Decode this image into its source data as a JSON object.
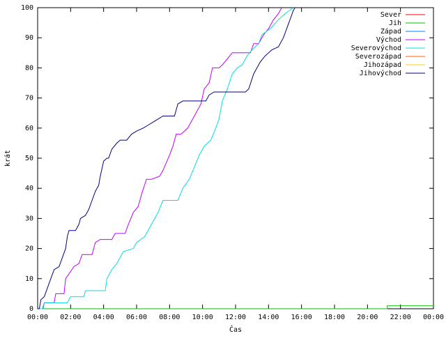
{
  "chart_data": {
    "type": "line",
    "title": "",
    "xlabel": "Čas",
    "ylabel": "krát",
    "xlim": [
      0,
      24
    ],
    "ylim": [
      0,
      100
    ],
    "x_ticks": [
      "00:00",
      "02:00",
      "04:00",
      "06:00",
      "08:00",
      "10:00",
      "12:00",
      "14:00",
      "16:00",
      "18:00",
      "20:00",
      "22:00",
      "00:00"
    ],
    "y_ticks": [
      "0",
      "10",
      "20",
      "30",
      "40",
      "50",
      "60",
      "70",
      "80",
      "90",
      "100"
    ],
    "legend_position": "top-right",
    "series": [
      {
        "name": "Sever",
        "color": "#ff0000",
        "points": []
      },
      {
        "name": "Jih",
        "color": "#00c000",
        "points": [
          [
            0,
            0
          ],
          [
            21.2,
            0
          ],
          [
            21.2,
            1
          ],
          [
            24,
            1
          ]
        ]
      },
      {
        "name": "Západ",
        "color": "#0080ff",
        "points": []
      },
      {
        "name": "Východ",
        "color": "#c000ff",
        "points": [
          [
            0,
            0
          ],
          [
            0.3,
            0
          ],
          [
            0.4,
            2
          ],
          [
            1.0,
            2
          ],
          [
            1.1,
            5
          ],
          [
            1.6,
            5
          ],
          [
            1.7,
            10
          ],
          [
            2.2,
            14
          ],
          [
            2.5,
            15
          ],
          [
            2.7,
            18
          ],
          [
            3.3,
            18
          ],
          [
            3.5,
            22
          ],
          [
            3.8,
            23
          ],
          [
            4.5,
            23
          ],
          [
            4.7,
            25
          ],
          [
            5.3,
            25
          ],
          [
            5.5,
            28
          ],
          [
            5.8,
            32
          ],
          [
            6.1,
            34
          ],
          [
            6.3,
            38
          ],
          [
            6.6,
            43
          ],
          [
            6.9,
            43
          ],
          [
            7.4,
            44
          ],
          [
            7.6,
            46
          ],
          [
            8.0,
            51
          ],
          [
            8.2,
            54
          ],
          [
            8.4,
            58
          ],
          [
            8.7,
            58
          ],
          [
            9.1,
            60
          ],
          [
            9.4,
            63
          ],
          [
            9.6,
            65
          ],
          [
            9.9,
            68
          ],
          [
            10.1,
            73
          ],
          [
            10.4,
            75
          ],
          [
            10.6,
            80
          ],
          [
            11.0,
            80
          ],
          [
            11.2,
            81
          ],
          [
            11.5,
            83
          ],
          [
            11.8,
            85
          ],
          [
            12.9,
            85
          ],
          [
            13.1,
            88
          ],
          [
            13.4,
            88
          ],
          [
            13.7,
            91
          ],
          [
            14.0,
            93
          ],
          [
            14.3,
            96
          ],
          [
            14.6,
            98
          ],
          [
            14.8,
            100
          ]
        ]
      },
      {
        "name": "Severovýchod",
        "color": "#00e0e0",
        "points": [
          [
            0,
            0
          ],
          [
            0.35,
            0
          ],
          [
            0.4,
            2
          ],
          [
            1.8,
            2
          ],
          [
            2.0,
            4
          ],
          [
            2.8,
            4
          ],
          [
            2.9,
            6
          ],
          [
            4.1,
            6
          ],
          [
            4.2,
            10
          ],
          [
            4.5,
            13
          ],
          [
            4.8,
            15
          ],
          [
            5.2,
            19
          ],
          [
            5.8,
            20
          ],
          [
            6.0,
            22
          ],
          [
            6.5,
            24
          ],
          [
            6.9,
            28
          ],
          [
            7.3,
            32
          ],
          [
            7.6,
            36
          ],
          [
            8.5,
            36
          ],
          [
            8.8,
            40
          ],
          [
            9.2,
            43
          ],
          [
            9.5,
            47
          ],
          [
            9.8,
            51
          ],
          [
            10.1,
            54
          ],
          [
            10.5,
            56
          ],
          [
            10.8,
            60
          ],
          [
            11.0,
            63
          ],
          [
            11.2,
            69
          ],
          [
            11.5,
            73
          ],
          [
            11.8,
            78
          ],
          [
            12.1,
            80
          ],
          [
            12.4,
            81
          ],
          [
            12.7,
            84
          ],
          [
            13.0,
            86
          ],
          [
            13.4,
            88
          ],
          [
            13.6,
            91
          ],
          [
            14.1,
            93
          ],
          [
            14.6,
            96
          ],
          [
            15.0,
            98
          ],
          [
            15.5,
            100
          ]
        ]
      },
      {
        "name": "Severozápad",
        "color": "#ff6000",
        "points": []
      },
      {
        "name": "Jihozápad",
        "color": "#ffd000",
        "points": []
      },
      {
        "name": "Jihovýchod",
        "color": "#000080",
        "points": [
          [
            0,
            0
          ],
          [
            0.1,
            0
          ],
          [
            0.2,
            3
          ],
          [
            0.4,
            4
          ],
          [
            0.6,
            7
          ],
          [
            0.8,
            10
          ],
          [
            1.0,
            13
          ],
          [
            1.3,
            14
          ],
          [
            1.5,
            17
          ],
          [
            1.7,
            20
          ],
          [
            1.8,
            24
          ],
          [
            1.9,
            26
          ],
          [
            2.3,
            26
          ],
          [
            2.5,
            28
          ],
          [
            2.6,
            30
          ],
          [
            2.9,
            31
          ],
          [
            3.1,
            33
          ],
          [
            3.3,
            36
          ],
          [
            3.5,
            39
          ],
          [
            3.7,
            41
          ],
          [
            3.8,
            44
          ],
          [
            4.0,
            49
          ],
          [
            4.2,
            50
          ],
          [
            4.3,
            50
          ],
          [
            4.5,
            53
          ],
          [
            4.8,
            55
          ],
          [
            5.0,
            56
          ],
          [
            5.4,
            56
          ],
          [
            5.7,
            58
          ],
          [
            6.0,
            59
          ],
          [
            6.4,
            60
          ],
          [
            6.7,
            61
          ],
          [
            7.0,
            62
          ],
          [
            7.3,
            63
          ],
          [
            7.6,
            64
          ],
          [
            8.3,
            64
          ],
          [
            8.5,
            68
          ],
          [
            8.8,
            69
          ],
          [
            10.2,
            69
          ],
          [
            10.4,
            71
          ],
          [
            10.7,
            72
          ],
          [
            11.4,
            72
          ],
          [
            12.6,
            72
          ],
          [
            12.8,
            73
          ],
          [
            13.1,
            78
          ],
          [
            13.5,
            82
          ],
          [
            13.8,
            84
          ],
          [
            14.2,
            86
          ],
          [
            14.6,
            87
          ],
          [
            14.9,
            90
          ],
          [
            15.1,
            93
          ],
          [
            15.3,
            96
          ],
          [
            15.5,
            99
          ],
          [
            15.6,
            100
          ]
        ]
      }
    ]
  }
}
